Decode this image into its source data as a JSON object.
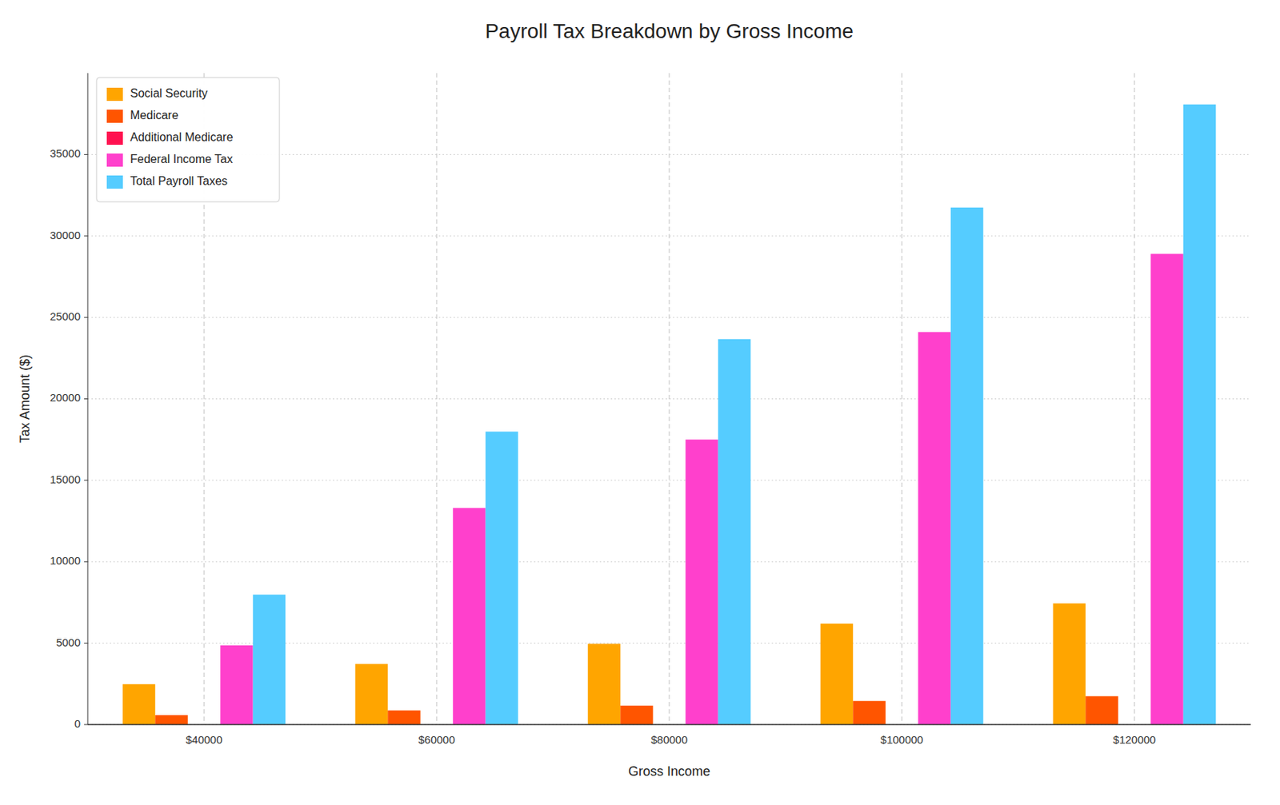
{
  "chart_data": {
    "type": "bar",
    "title": "Payroll Tax Breakdown by Gross Income",
    "x_label": "Gross Income",
    "y_label": "Tax Amount ($)",
    "categories": [
      "$40000",
      "$60000",
      "$80000",
      "$100000",
      "$120000"
    ],
    "series": [
      {
        "name": "Social Security",
        "color": "#FFA500",
        "values": [
          2480,
          3720,
          4960,
          6200,
          7440
        ]
      },
      {
        "name": "Medicare",
        "color": "#FF5500",
        "values": [
          580,
          870,
          1160,
          1450,
          1740
        ]
      },
      {
        "name": "Additional Medicare",
        "color": "#FF1050",
        "values": [
          0,
          0,
          0,
          0,
          0
        ]
      },
      {
        "name": "Federal Income Tax",
        "color": "#FF40CC",
        "values": [
          4865,
          13300,
          17500,
          24100,
          28900
        ]
      },
      {
        "name": "Total Payroll Taxes",
        "color": "#55CCFF",
        "values": [
          7978,
          17988,
          23668,
          31748,
          38078
        ]
      }
    ],
    "ylim": [
      0,
      40000
    ],
    "yticks": [
      0,
      5000,
      10000,
      15000,
      20000,
      25000,
      30000,
      35000
    ],
    "grid": true,
    "legend": "upper left"
  }
}
